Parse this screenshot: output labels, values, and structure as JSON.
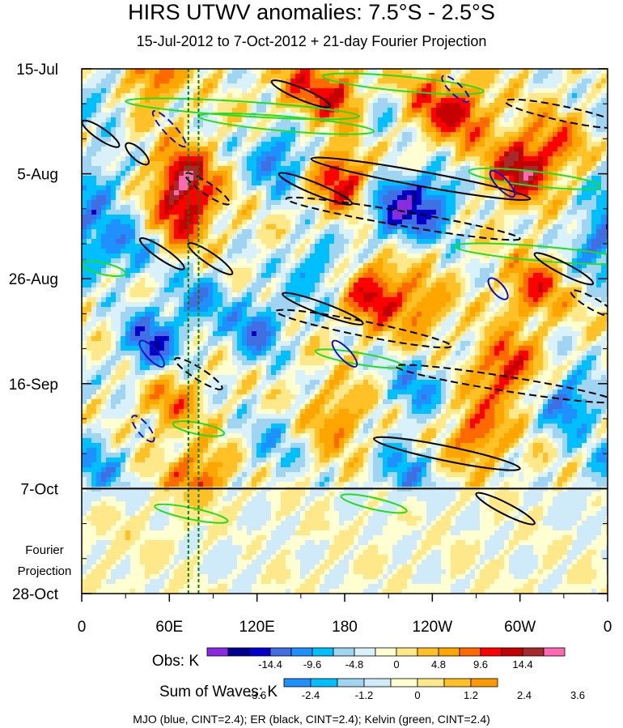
{
  "title": "HIRS UTWV anomalies: 7.5°S - 2.5°S",
  "subtitle": "15-Jul-2012 to 7-Oct-2012 + 21-day Fourier Projection",
  "chart_data": {
    "type": "heatmap",
    "variable": "UTWV anomalies",
    "units": "K",
    "x_axis": {
      "range_deg_east": [
        0,
        360
      ],
      "ticks": [
        {
          "lon": 0,
          "label": "0"
        },
        {
          "lon": 60,
          "label": "60E"
        },
        {
          "lon": 120,
          "label": "120E"
        },
        {
          "lon": 180,
          "label": "180"
        },
        {
          "lon": 240,
          "label": "120W"
        },
        {
          "lon": 300,
          "label": "60W"
        },
        {
          "lon": 360,
          "label": "0"
        }
      ]
    },
    "y_axis": {
      "range_days": [
        0,
        105
      ],
      "ticks": [
        {
          "day": 0,
          "label": "15-Jul"
        },
        {
          "day": 21,
          "label": "5-Aug"
        },
        {
          "day": 42,
          "label": "26-Aug"
        },
        {
          "day": 63,
          "label": "16-Sep"
        },
        {
          "day": 84,
          "label": "7-Oct"
        },
        {
          "day": 105,
          "label": "28-Oct"
        }
      ],
      "forecast_start_day": 84
    },
    "forecast_label": [
      "Fourier",
      "Projection"
    ],
    "vertical_lines_lon": [
      73,
      80
    ],
    "obs_colorbar": {
      "label": "Obs: K",
      "ticks": [
        "-14.4",
        "-9.6",
        "-4.8",
        "0",
        "4.8",
        "9.6",
        "14.4"
      ],
      "colors": [
        "#8a2be2",
        "#000090",
        "#0000cd",
        "#3f6fe0",
        "#1e90ff",
        "#00bfff",
        "#9fd4f2",
        "#d9f1fa",
        "#ffffd2",
        "#ffe88a",
        "#ffc125",
        "#ffa500",
        "#ff6a00",
        "#ff0000",
        "#c40000",
        "#a52a2a",
        "#ff69b4"
      ]
    },
    "waves_colorbar": {
      "label": "Sum of Waves: K",
      "ticks": [
        "-3.6",
        "-2.4",
        "-1.2",
        "0",
        "1.2",
        "2.4",
        "3.6"
      ],
      "colors": [
        "#1e90ff",
        "#00bfff",
        "#9fd4f2",
        "#cfeaf8",
        "#ffffd2",
        "#ffe88a",
        "#ffc125",
        "#ff9900"
      ]
    },
    "wave_contours": [
      {
        "name": "MJO",
        "color": "blue",
        "cint": 2.4
      },
      {
        "name": "ER",
        "color": "black",
        "cint": 2.4
      },
      {
        "name": "Kelvin",
        "color": "green",
        "cint": 2.4
      }
    ],
    "footer": "MJO (blue, CINT=2.4); ER (black, CINT=2.4); Kelvin (green, CINT=2.4)",
    "anomaly_centers": [
      {
        "lon": 48,
        "day": 1,
        "value": 9.6
      },
      {
        "lon": 70,
        "day": 22,
        "value": 14.4
      },
      {
        "lon": 150,
        "day": 3,
        "value": 7.2
      },
      {
        "lon": 178,
        "day": 22,
        "value": 12.0
      },
      {
        "lon": 178,
        "day": 6,
        "value": 9.6
      },
      {
        "lon": 238,
        "day": 7,
        "value": 7.2
      },
      {
        "lon": 262,
        "day": 9,
        "value": 9.6
      },
      {
        "lon": 300,
        "day": 20,
        "value": 14.4
      },
      {
        "lon": 325,
        "day": 15,
        "value": 7.2
      },
      {
        "lon": 200,
        "day": 45,
        "value": 12.0
      },
      {
        "lon": 232,
        "day": 48,
        "value": 7.2
      },
      {
        "lon": 310,
        "day": 44,
        "value": 9.6
      },
      {
        "lon": 290,
        "day": 60,
        "value": 12.0
      },
      {
        "lon": 70,
        "day": 30,
        "value": 9.6
      },
      {
        "lon": 175,
        "day": 70,
        "value": 7.2
      },
      {
        "lon": 270,
        "day": 73,
        "value": 9.6
      },
      {
        "lon": 60,
        "day": 66,
        "value": 7.2
      },
      {
        "lon": 80,
        "day": 82,
        "value": 9.6
      },
      {
        "lon": 25,
        "day": 95,
        "value": 2.4
      },
      {
        "lon": 135,
        "day": 18,
        "value": -9.6
      },
      {
        "lon": 215,
        "day": 28,
        "value": -12.0
      },
      {
        "lon": 240,
        "day": 27,
        "value": -9.6
      },
      {
        "lon": 10,
        "day": 24,
        "value": -7.2
      },
      {
        "lon": 48,
        "day": 55,
        "value": -12.0
      },
      {
        "lon": 30,
        "day": 36,
        "value": -7.2
      },
      {
        "lon": 80,
        "day": 46,
        "value": -7.2
      },
      {
        "lon": 120,
        "day": 52,
        "value": -9.6
      },
      {
        "lon": 160,
        "day": 40,
        "value": -7.2
      },
      {
        "lon": 230,
        "day": 64,
        "value": -7.2
      },
      {
        "lon": 335,
        "day": 67,
        "value": -9.6
      },
      {
        "lon": 130,
        "day": 75,
        "value": -4.8
      },
      {
        "lon": 355,
        "day": 35,
        "value": -9.6
      },
      {
        "lon": 10,
        "day": 80,
        "value": -7.2
      },
      {
        "lon": 220,
        "day": 81,
        "value": -7.2
      },
      {
        "lon": 340,
        "day": 88,
        "value": -2.4
      },
      {
        "lon": 110,
        "day": 98,
        "value": -2.4
      },
      {
        "lon": 15,
        "day": 5,
        "value": -4.8
      },
      {
        "lon": 200,
        "day": 10,
        "value": -4.8
      }
    ],
    "er_contours": [
      {
        "lon": 13,
        "day": 13,
        "dlon": 25,
        "dday": 5,
        "sign": 1
      },
      {
        "lon": 38,
        "day": 17,
        "dlon": 15,
        "dday": 4,
        "sign": 1
      },
      {
        "lon": 55,
        "day": 37,
        "dlon": 30,
        "dday": 6,
        "sign": 1
      },
      {
        "lon": 86,
        "day": 24,
        "dlon": 30,
        "dday": 6,
        "sign": -1
      },
      {
        "lon": 88,
        "day": 38,
        "dlon": 30,
        "dday": 6,
        "sign": 1
      },
      {
        "lon": 80,
        "day": 61,
        "dlon": 32,
        "dday": 6,
        "sign": -1
      },
      {
        "lon": 150,
        "day": 5,
        "dlon": 40,
        "dday": 5,
        "sign": 1
      },
      {
        "lon": 160,
        "day": 24,
        "dlon": 50,
        "dday": 6,
        "sign": 1
      },
      {
        "lon": 165,
        "day": 48,
        "dlon": 55,
        "dday": 6,
        "sign": 1
      },
      {
        "lon": 193,
        "day": 52,
        "dlon": 120,
        "dday": 7,
        "sign": -1
      },
      {
        "lon": 220,
        "day": 30,
        "dlon": 160,
        "dday": 8,
        "sign": -1
      },
      {
        "lon": 232,
        "day": 22,
        "dlon": 150,
        "dday": 8,
        "sign": 1
      },
      {
        "lon": 290,
        "day": 63,
        "dlon": 150,
        "dday": 7,
        "sign": -1
      },
      {
        "lon": 250,
        "day": 77,
        "dlon": 100,
        "dday": 6,
        "sign": 1
      },
      {
        "lon": 330,
        "day": 9,
        "dlon": 80,
        "dday": 5,
        "sign": -1
      },
      {
        "lon": 330,
        "day": 40,
        "dlon": 40,
        "dday": 6,
        "sign": 1
      },
      {
        "lon": 350,
        "day": 47,
        "dlon": 30,
        "dday": 5,
        "sign": -1
      },
      {
        "lon": 290,
        "day": 88,
        "dlon": 40,
        "dday": 6,
        "sign": 1
      }
    ],
    "mjo_contours": [
      {
        "lon": 60,
        "day": 12,
        "dlon": 22,
        "dday": 7,
        "sign": -1
      },
      {
        "lon": 48,
        "day": 57,
        "dlon": 16,
        "dday": 5,
        "sign": 1
      },
      {
        "lon": 42,
        "day": 72,
        "dlon": 14,
        "dday": 5,
        "sign": -1
      },
      {
        "lon": 180,
        "day": 57,
        "dlon": 16,
        "dday": 5,
        "sign": 1
      },
      {
        "lon": 256,
        "day": 4,
        "dlon": 18,
        "dday": 5,
        "sign": -1
      },
      {
        "lon": 288,
        "day": 23,
        "dlon": 16,
        "dday": 5,
        "sign": 1
      },
      {
        "lon": 285,
        "day": 44,
        "dlon": 12,
        "dday": 4,
        "sign": 1
      }
    ],
    "kelvin_contours": [
      {
        "lon": 110,
        "day": 8,
        "dlon": 160,
        "dday": 3,
        "sign": 1
      },
      {
        "lon": 140,
        "day": 11,
        "dlon": 120,
        "dday": 3,
        "sign": 1
      },
      {
        "lon": 220,
        "day": 3,
        "dlon": 110,
        "dday": 3,
        "sign": 1
      },
      {
        "lon": 310,
        "day": 22,
        "dlon": 90,
        "dday": 3,
        "sign": 1
      },
      {
        "lon": 315,
        "day": 37,
        "dlon": 120,
        "dday": 3,
        "sign": 1
      },
      {
        "lon": 190,
        "day": 58,
        "dlon": 60,
        "dday": 3,
        "sign": 1
      },
      {
        "lon": 75,
        "day": 89,
        "dlon": 50,
        "dday": 3,
        "sign": 1
      },
      {
        "lon": 200,
        "day": 87,
        "dlon": 45,
        "dday": 3,
        "sign": 1
      },
      {
        "lon": 15,
        "day": 40,
        "dlon": 30,
        "dday": 2,
        "sign": 1
      },
      {
        "lon": 80,
        "day": 72,
        "dlon": 35,
        "dday": 2,
        "sign": 1
      }
    ]
  }
}
